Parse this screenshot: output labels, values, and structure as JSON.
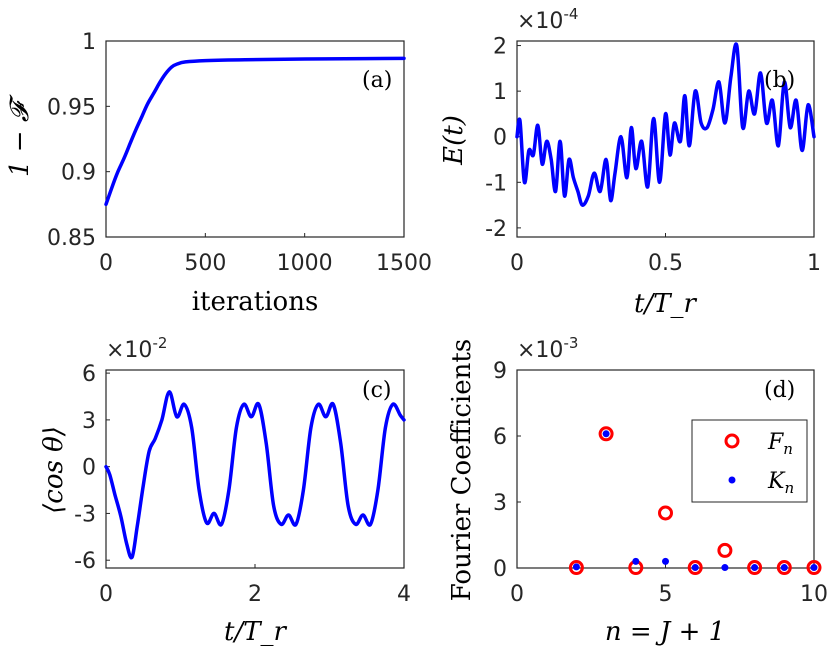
{
  "chart_data": [
    {
      "panel": "(a)",
      "type": "line",
      "xlabel": "iterations",
      "ylabel": "1 − 𝓕",
      "xlim": [
        0,
        1500
      ],
      "ylim": [
        0.85,
        1.0
      ],
      "xticks": [
        "0",
        "500",
        "1000",
        "1500"
      ],
      "yticks": [
        "0.85",
        "0.9",
        "0.95",
        "1"
      ],
      "series": [
        {
          "name": "fidelity",
          "color": "#0000ff",
          "x": [
            0,
            30,
            60,
            90,
            120,
            150,
            180,
            210,
            240,
            270,
            300,
            330,
            360,
            400,
            500,
            700,
            1000,
            1300,
            1500
          ],
          "y": [
            0.875,
            0.888,
            0.9,
            0.91,
            0.921,
            0.932,
            0.942,
            0.952,
            0.96,
            0.968,
            0.975,
            0.98,
            0.9825,
            0.984,
            0.985,
            0.9857,
            0.9862,
            0.9865,
            0.9867
          ]
        }
      ]
    },
    {
      "panel": "(b)",
      "type": "line",
      "xlabel": "t/T_r",
      "ylabel": "E(t)",
      "multiplier": "×10-4",
      "xlim": [
        0,
        1
      ],
      "ylim": [
        -2.2,
        2.1
      ],
      "xticks": [
        "0",
        "0.5",
        "1"
      ],
      "yticks": [
        "-2",
        "-1",
        "0",
        "1",
        "2"
      ],
      "series": [
        {
          "name": "E(t)",
          "color": "#0000ff",
          "x": [
            0,
            0.01,
            0.025,
            0.04,
            0.055,
            0.07,
            0.085,
            0.1,
            0.115,
            0.13,
            0.145,
            0.16,
            0.175,
            0.19,
            0.205,
            0.22,
            0.24,
            0.26,
            0.28,
            0.3,
            0.315,
            0.33,
            0.35,
            0.37,
            0.385,
            0.4,
            0.42,
            0.44,
            0.46,
            0.48,
            0.5,
            0.515,
            0.53,
            0.55,
            0.565,
            0.58,
            0.6,
            0.62,
            0.64,
            0.66,
            0.68,
            0.7,
            0.72,
            0.74,
            0.76,
            0.78,
            0.8,
            0.82,
            0.84,
            0.86,
            0.88,
            0.9,
            0.92,
            0.94,
            0.96,
            0.98,
            1.0
          ],
          "y": [
            0.0,
            0.35,
            -1.0,
            -0.3,
            -0.4,
            0.25,
            -0.6,
            -0.1,
            -0.5,
            -1.2,
            -0.1,
            -1.3,
            -0.5,
            -0.9,
            -1.2,
            -1.5,
            -1.3,
            -0.8,
            -1.2,
            -0.5,
            -1.4,
            -0.8,
            0.0,
            -0.9,
            0.2,
            -0.7,
            -0.1,
            -1.1,
            0.4,
            -1.0,
            0.5,
            -0.4,
            0.3,
            -0.1,
            0.9,
            -0.2,
            1.0,
            0.3,
            0.2,
            0.6,
            1.2,
            0.3,
            1.3,
            2.0,
            0.2,
            1.0,
            0.5,
            1.4,
            0.3,
            0.8,
            -0.2,
            1.2,
            0.2,
            0.8,
            -0.3,
            0.7,
            0.0
          ]
        }
      ]
    },
    {
      "panel": "(c)",
      "type": "line",
      "xlabel": "t/T_r",
      "ylabel": "⟨cos θ⟩",
      "multiplier": "×10-2",
      "xlim": [
        0,
        4
      ],
      "ylim": [
        -6.5,
        6.2
      ],
      "xticks": [
        "0",
        "2",
        "4"
      ],
      "yticks": [
        "-6",
        "-3",
        "0",
        "3",
        "6"
      ],
      "series": [
        {
          "name": "cos theta",
          "color": "#0000ff",
          "x": [
            0,
            0.05,
            0.12,
            0.2,
            0.28,
            0.35,
            0.42,
            0.5,
            0.58,
            0.66,
            0.75,
            0.85,
            0.95,
            1.05,
            1.15,
            1.25,
            1.35,
            1.45,
            1.55,
            1.65,
            1.75,
            1.85,
            1.95,
            2.05,
            2.15,
            2.25,
            2.35,
            2.45,
            2.55,
            2.65,
            2.75,
            2.85,
            2.95,
            3.05,
            3.15,
            3.25,
            3.35,
            3.45,
            3.55,
            3.65,
            3.75,
            3.85,
            3.95,
            4.0
          ],
          "y": [
            0.0,
            -0.5,
            -1.8,
            -3.2,
            -5.0,
            -5.8,
            -3.8,
            -1.2,
            1.0,
            1.8,
            3.0,
            4.8,
            3.2,
            4.0,
            2.5,
            -1.5,
            -3.6,
            -3.0,
            -3.7,
            -1.5,
            2.5,
            4.0,
            3.2,
            4.0,
            1.5,
            -2.5,
            -3.7,
            -3.1,
            -3.7,
            -1.5,
            2.5,
            4.0,
            3.2,
            4.0,
            1.5,
            -2.5,
            -3.7,
            -3.1,
            -3.7,
            -1.5,
            2.5,
            4.0,
            3.3,
            3.0
          ]
        }
      ]
    },
    {
      "panel": "(d)",
      "type": "scatter",
      "xlabel": "n = J + 1",
      "ylabel": "Fourier Coefficients",
      "multiplier": "×10-3",
      "xlim": [
        0,
        10
      ],
      "ylim": [
        0,
        9
      ],
      "xticks": [
        "0",
        "5",
        "10"
      ],
      "yticks": [
        "0",
        "3",
        "6",
        "9"
      ],
      "legend_position": "top-right",
      "series": [
        {
          "name": "F_n",
          "marker": "open-circle",
          "color": "#ff0000",
          "x": [
            2,
            3,
            4,
            5,
            6,
            7,
            8,
            9,
            10
          ],
          "y": [
            0.02,
            6.1,
            0.02,
            2.5,
            0.02,
            0.8,
            0.02,
            0.02,
            0.02
          ]
        },
        {
          "name": "K_n",
          "marker": "dot",
          "color": "#0000ff",
          "x": [
            2,
            3,
            4,
            5,
            6,
            7,
            8,
            9,
            10
          ],
          "y": [
            0.05,
            6.1,
            0.3,
            0.3,
            0.02,
            0.02,
            0.02,
            0.02,
            0.02
          ]
        }
      ]
    }
  ]
}
